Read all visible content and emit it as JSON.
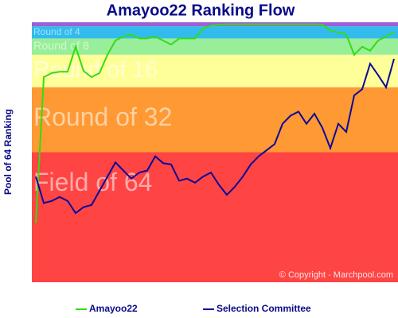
{
  "chart_data": {
    "type": "line",
    "title": "Amayoo22 Ranking Flow",
    "y_label": "Pool of 64 Ranking",
    "copyright": "© Copyright - Marchpool.com",
    "ylim": [
      64,
      0
    ],
    "bands": [
      {
        "from": 0,
        "to": 1,
        "color": "#9b5fd6"
      },
      {
        "from": 1,
        "to": 4,
        "color": "#33bbee",
        "name": "Round of 4"
      },
      {
        "from": 4,
        "to": 8,
        "color": "#99ee99",
        "name": "Round of 8"
      },
      {
        "from": 8,
        "to": 16,
        "color": "#ffff99",
        "name": "Round of 16"
      },
      {
        "from": 16,
        "to": 32,
        "color": "#ff9933",
        "name": "Round of 32"
      },
      {
        "from": 32,
        "to": 64,
        "color": "#ff4444",
        "name": "Field of 64"
      }
    ],
    "series": [
      {
        "name": "Amayoo22",
        "color": "#33dd11",
        "values": [
          49.4,
          13.5,
          12.5,
          12.2,
          12.2,
          6,
          12,
          13.5,
          12.5,
          8,
          4.5,
          3.5,
          3,
          4,
          4,
          3.5,
          4.5,
          5.5,
          4,
          4,
          4,
          1.5,
          0.8,
          0.6,
          0.5,
          0.5,
          0.5,
          0.5,
          0.5,
          0.5,
          0.5,
          0.5,
          0.5,
          0.5,
          0.5,
          0.5,
          0.6,
          2,
          2.5,
          3,
          8,
          6,
          7,
          4.5,
          3.5,
          2.5
        ]
      },
      {
        "name": "Selection Committee",
        "color": "#0a0a99",
        "values": [
          38,
          44.5,
          44,
          43,
          44,
          47,
          45.5,
          45,
          41.5,
          38,
          34.5,
          36.5,
          38.5,
          37,
          36.5,
          33,
          34.7,
          35,
          39,
          38.5,
          39.5,
          38,
          37,
          40,
          42.5,
          40.5,
          38,
          35,
          33,
          31.5,
          30,
          25,
          23,
          22,
          25,
          22.5,
          26,
          31,
          25,
          27,
          18,
          16.5,
          10.2,
          13,
          16,
          9
        ]
      }
    ]
  }
}
